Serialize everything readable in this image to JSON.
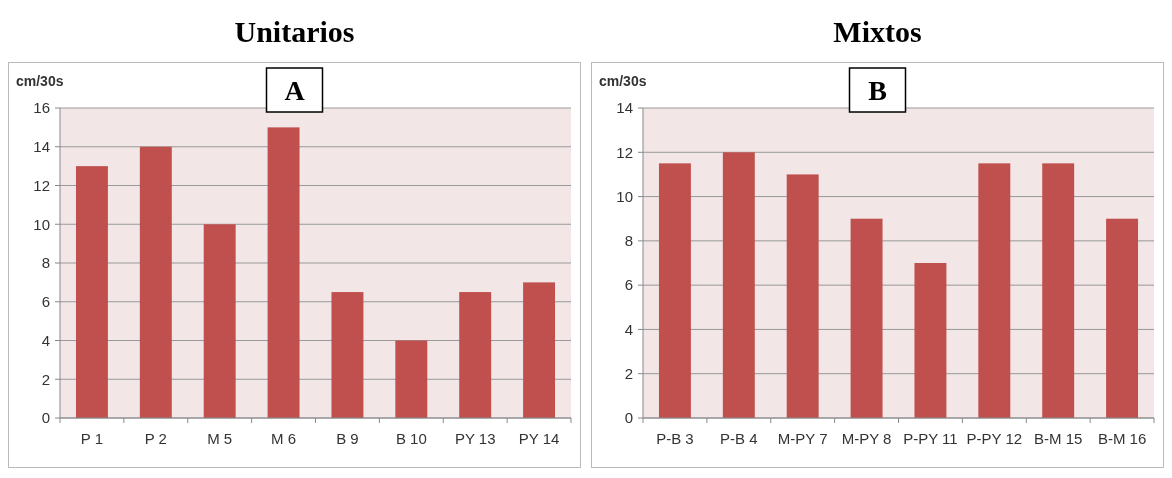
{
  "chart_data": [
    {
      "type": "bar",
      "title": "Unitarios",
      "ylabel": "cm/30s",
      "annotations": [
        "A"
      ],
      "categories": [
        "P 1",
        "P 2",
        "M 5",
        "M 6",
        "B 9",
        "B 10",
        "PY 13",
        "PY 14"
      ],
      "series": [
        {
          "color": "#c0504d",
          "values": [
            13,
            14,
            10,
            15,
            6.5,
            4,
            6.5,
            7
          ]
        }
      ],
      "ylim": [
        0,
        16
      ],
      "yticks": [
        0,
        2,
        4,
        6,
        8,
        10,
        12,
        14,
        16
      ],
      "grid": "y"
    },
    {
      "type": "bar",
      "title": "Mixtos",
      "ylabel": "cm/30s",
      "annotations": [
        "B"
      ],
      "categories": [
        "P-B 3",
        "P-B 4",
        "M-PY 7",
        "M-PY 8",
        "P-PY 11",
        "P-PY 12",
        "B-M 15",
        "B-M 16"
      ],
      "series": [
        {
          "color": "#c0504d",
          "values": [
            11.5,
            12,
            11,
            9,
            7,
            11.5,
            11.5,
            9
          ]
        }
      ],
      "ylim": [
        0,
        14
      ],
      "yticks": [
        0,
        2,
        4,
        6,
        8,
        10,
        12,
        14
      ],
      "grid": "y"
    }
  ]
}
